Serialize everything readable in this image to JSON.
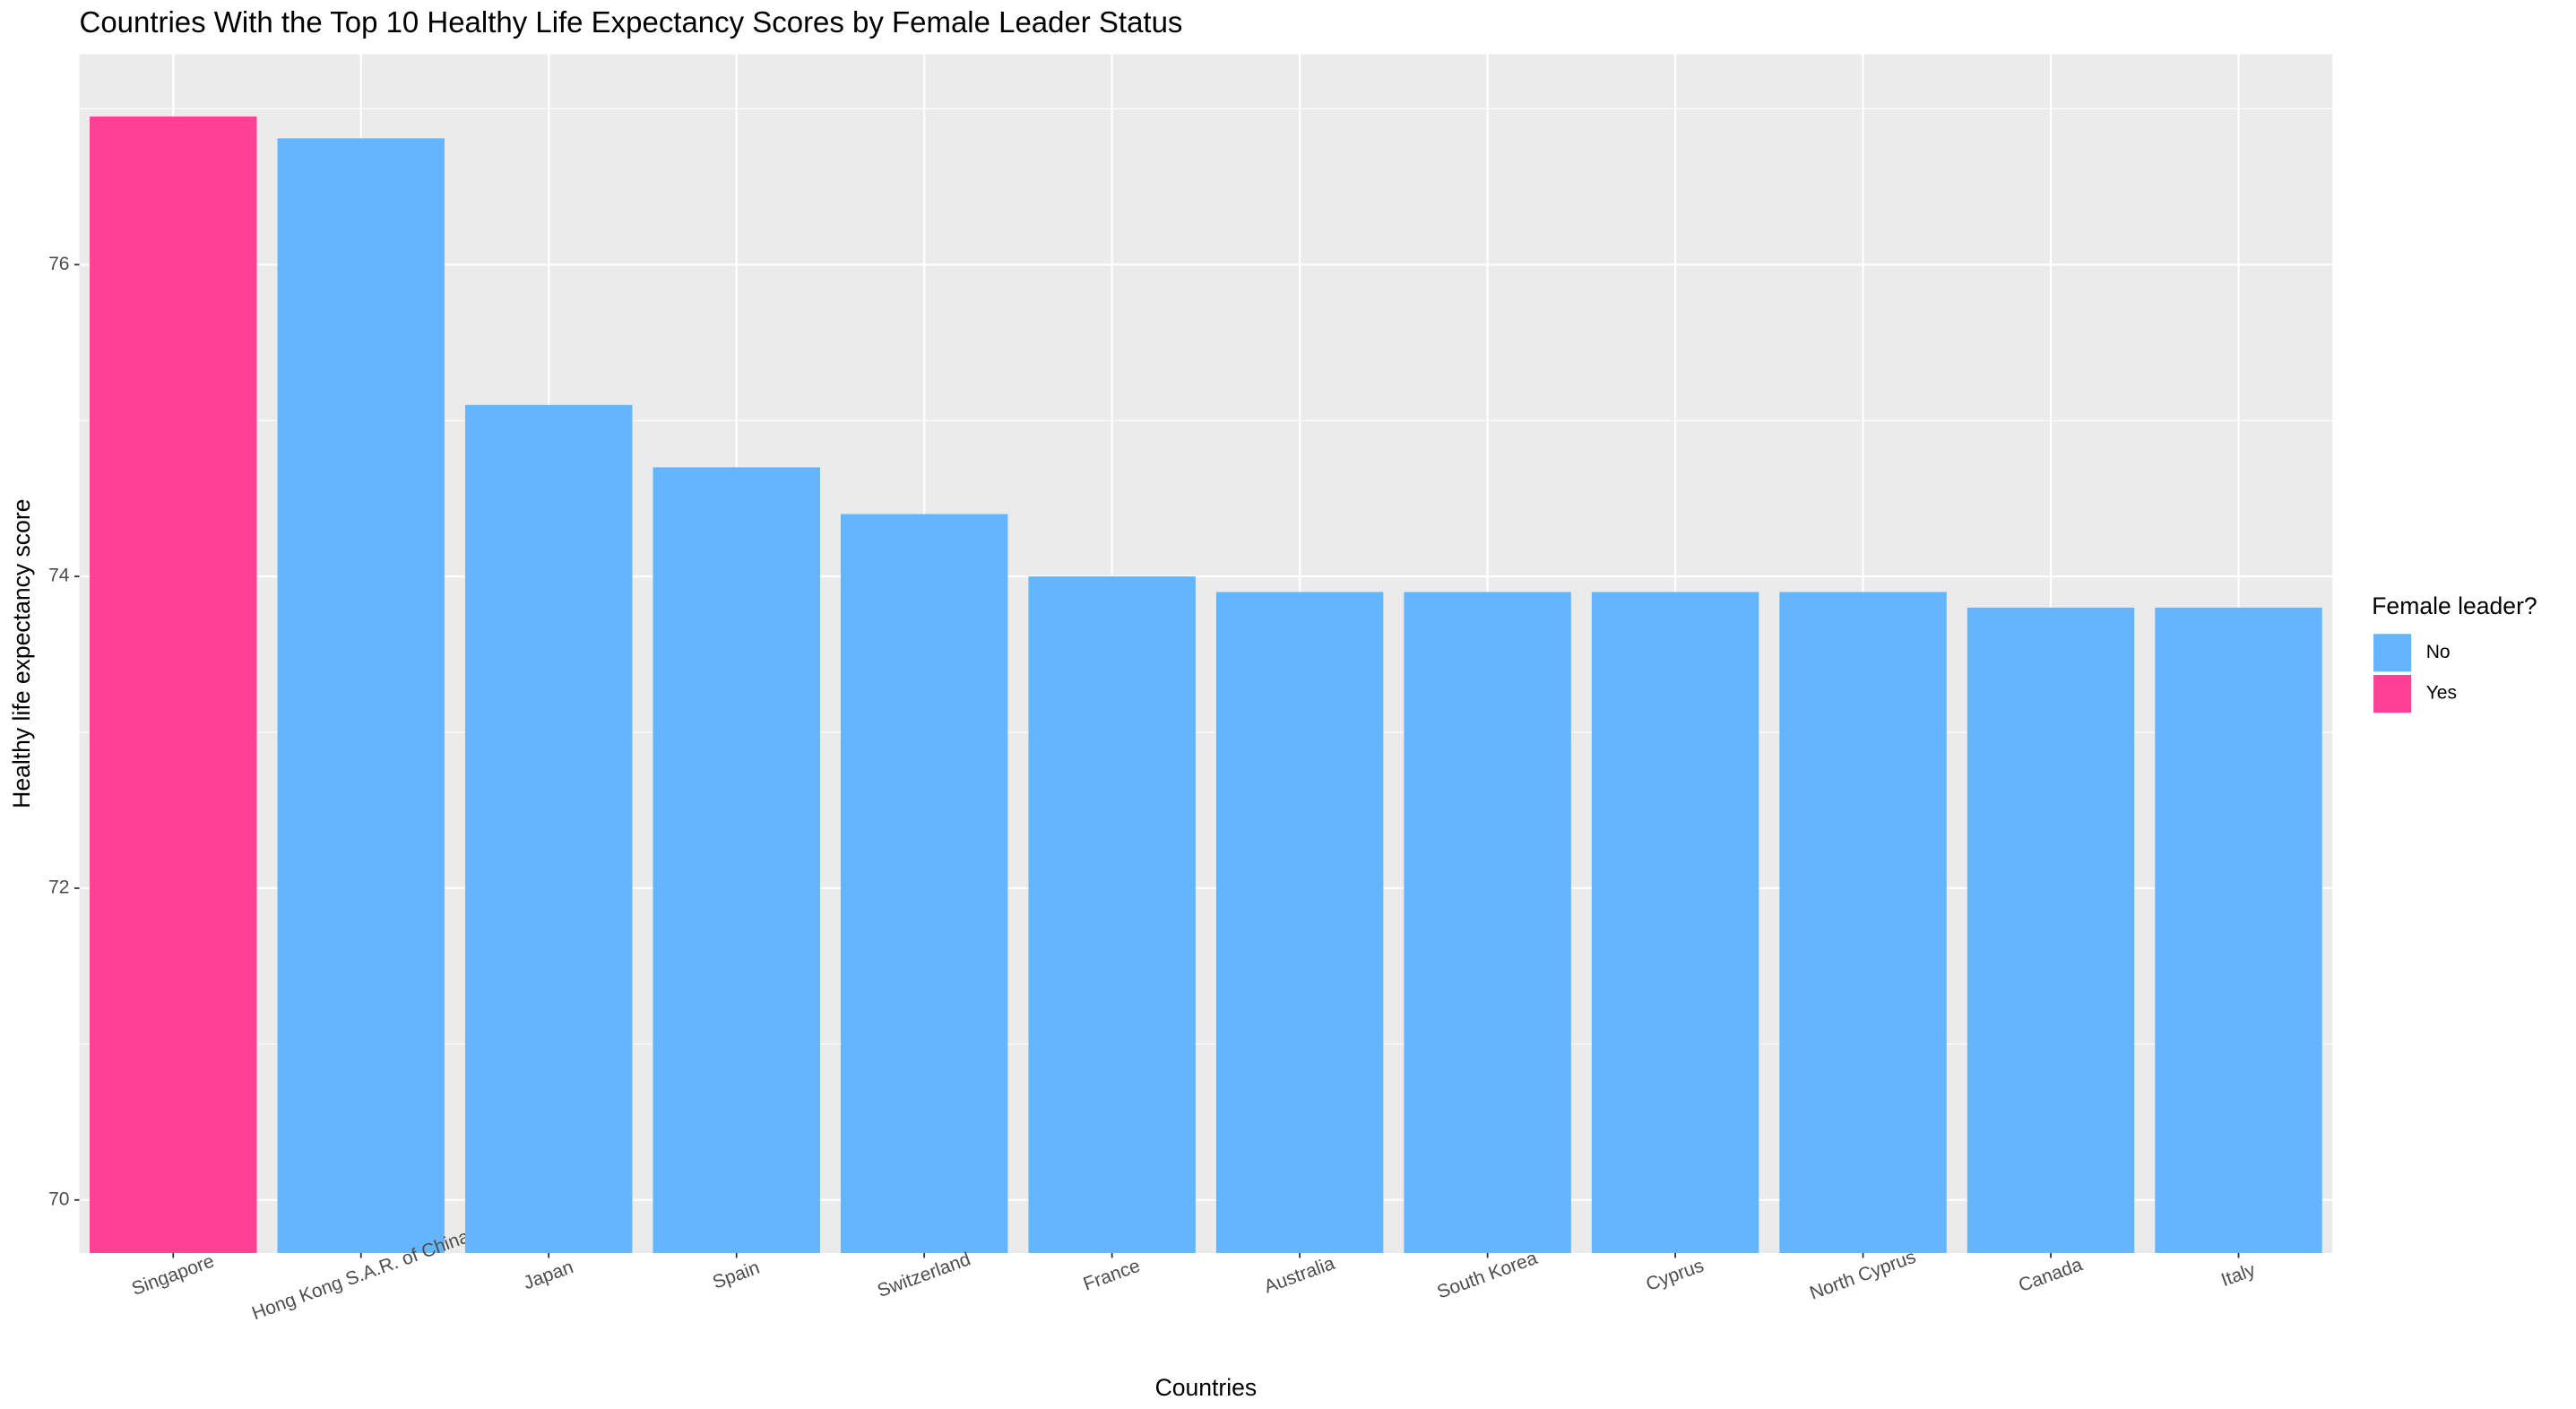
{
  "chart_data": {
    "type": "bar",
    "title": "Countries With the Top 10 Healthy Life Expectancy Scores by Female Leader Status",
    "x_label": "Countries",
    "y_label": "Healthy life expectancy score",
    "categories": [
      "Singapore",
      "Hong Kong S.A.R. of China",
      "Japan",
      "Spain",
      "Switzerland",
      "France",
      "Australia",
      "South Korea",
      "Cyprus",
      "North Cyprus",
      "Canada",
      "Italy"
    ],
    "legend_title": "Female leader?",
    "series": [
      {
        "name": "No",
        "color": "#63b6fd",
        "values": [
          null,
          76.81,
          75.1,
          74.7,
          74.4,
          74.0,
          73.9,
          73.9,
          73.9,
          73.9,
          73.8,
          73.8
        ]
      },
      {
        "name": "Yes",
        "color": "#ff4196",
        "values": [
          76.95,
          null,
          null,
          null,
          null,
          null,
          null,
          null,
          null,
          null,
          null,
          null
        ]
      }
    ],
    "ylim": [
      69.66,
      77.35
    ],
    "yticks": [
      70,
      72,
      74,
      76
    ],
    "minor_yticks": [
      71,
      73,
      75,
      77
    ],
    "grid": true,
    "legend": "right"
  }
}
